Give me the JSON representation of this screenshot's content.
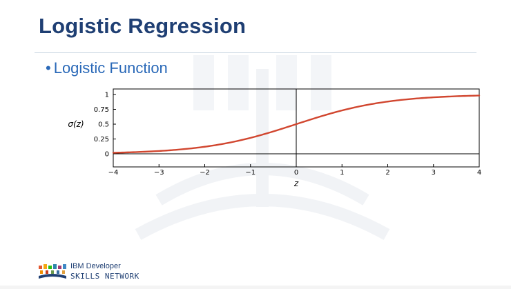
{
  "slide": {
    "title": "Logistic Regression",
    "bullet": "Logistic Function"
  },
  "branding": {
    "line1": "IBM Developer",
    "line2": "SKILLS NETWORK"
  },
  "colors": {
    "title": "#1f3f73",
    "bullet": "#2a69b8",
    "curve": "#d1462f"
  },
  "chart_data": {
    "type": "line",
    "function": "sigmoid",
    "xlabel": "z",
    "ylabel": "σ(z)",
    "xlim": [
      -4,
      4
    ],
    "ylim": [
      0,
      1
    ],
    "xticks": [
      -4,
      -3,
      -2,
      -1,
      0,
      1,
      2,
      3,
      4
    ],
    "xtick_labels": [
      "−4",
      "−3",
      "−2",
      "−1",
      "0",
      "1",
      "2",
      "3",
      "4"
    ],
    "yticks": [
      0,
      0.25,
      0.5,
      0.75,
      1
    ],
    "ytick_labels": [
      "0",
      "0.25",
      "0.5",
      "0.75",
      "1"
    ],
    "grid": false,
    "series": [
      {
        "color": "#d1462f",
        "x": [
          -4,
          -3.5,
          -3,
          -2.5,
          -2,
          -1.5,
          -1,
          -0.5,
          0,
          0.5,
          1,
          1.5,
          2,
          2.5,
          3,
          3.5,
          4
        ],
        "y": [
          0.018,
          0.029,
          0.047,
          0.076,
          0.119,
          0.182,
          0.269,
          0.378,
          0.5,
          0.622,
          0.731,
          0.818,
          0.881,
          0.924,
          0.953,
          0.971,
          0.982
        ]
      }
    ]
  }
}
